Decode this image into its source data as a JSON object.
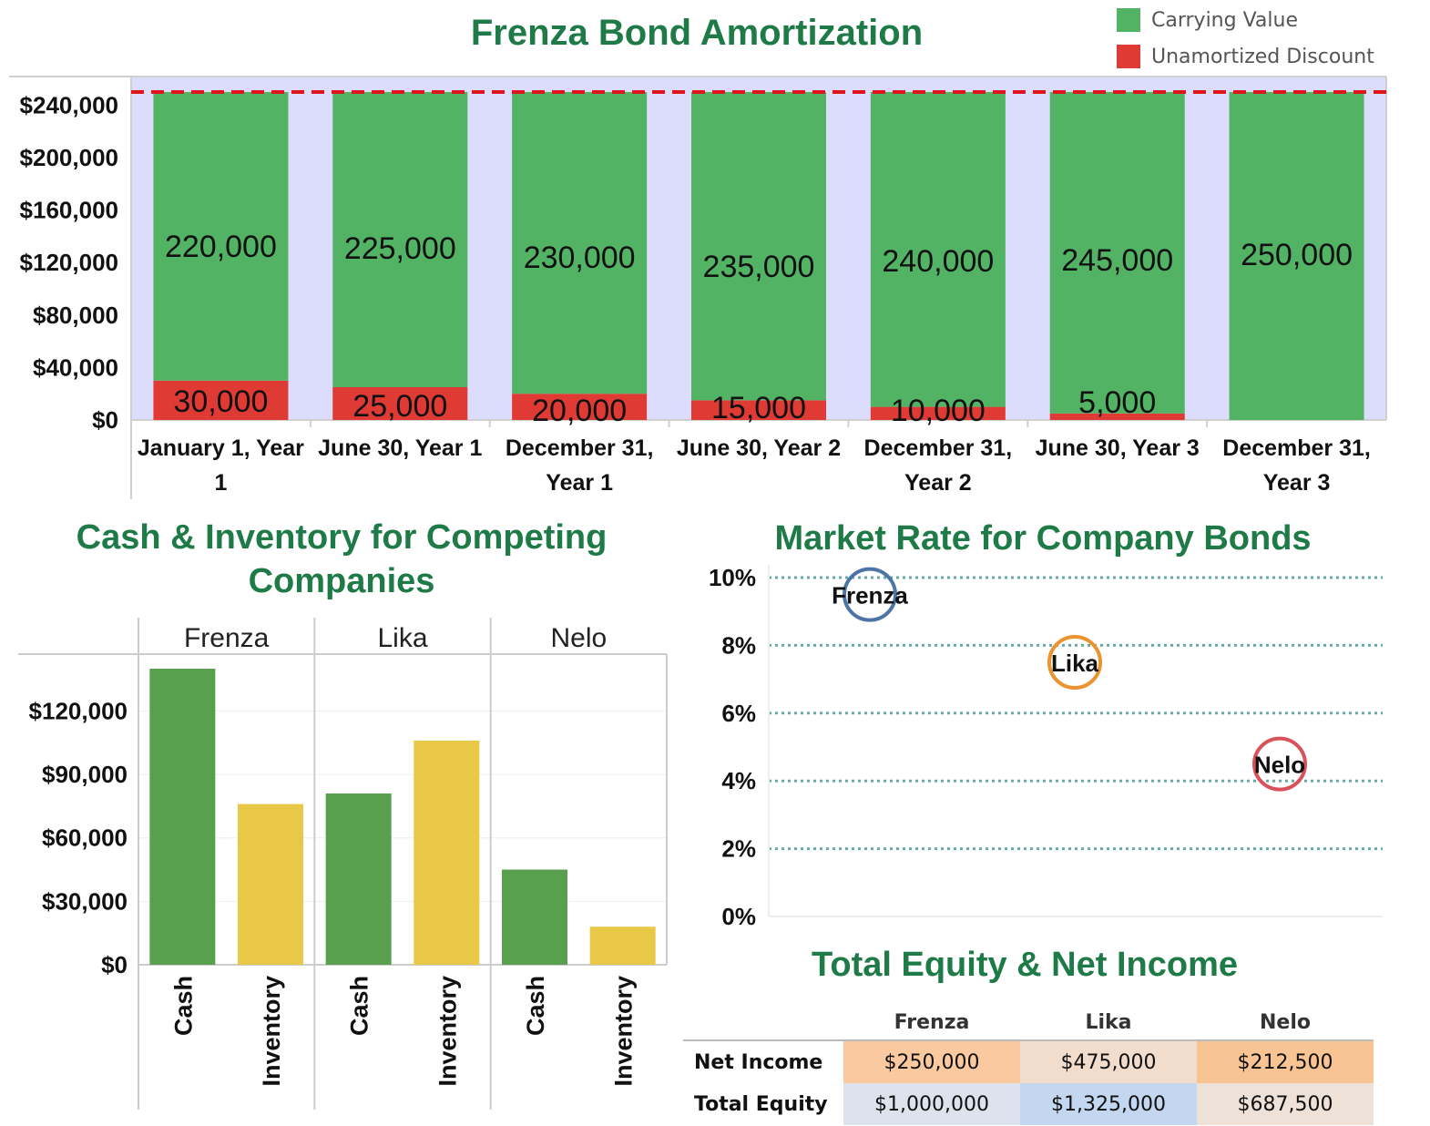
{
  "colors": {
    "title": "#1e7a46",
    "carrying": "#53b365",
    "discount": "#e03a34",
    "plot_bg": "#dcdcfc",
    "cash": "#58a04e",
    "inventory": "#e9c847",
    "frenza_circle": "#4e73a6",
    "lika_circle": "#ec922e",
    "nelo_circle": "#d9525a",
    "grid_dotted": "#69aaa4"
  },
  "chart_data": [
    {
      "type": "bar",
      "stacked": true,
      "title": "Frenza Bond Amortization",
      "categories": [
        "January 1, Year 1",
        "June 30, Year 1",
        "December 31, Year 1",
        "June 30, Year 2",
        "December 31, Year 2",
        "June 30, Year 3",
        "December 31, Year 3"
      ],
      "series": [
        {
          "name": "Unamortized Discount",
          "values": [
            30000,
            25000,
            20000,
            15000,
            10000,
            5000,
            0
          ],
          "labels": [
            "30,000",
            "25,000",
            "20,000",
            "15,000",
            "10,000",
            "5,000",
            ""
          ]
        },
        {
          "name": "Carrying Value",
          "values": [
            220000,
            225000,
            230000,
            235000,
            240000,
            245000,
            250000
          ],
          "labels": [
            "220,000",
            "225,000",
            "230,000",
            "235,000",
            "240,000",
            "245,000",
            "250,000"
          ]
        }
      ],
      "yticks": [
        "$0",
        "$40,000",
        "$80,000",
        "$120,000",
        "$160,000",
        "$200,000",
        "$240,000"
      ],
      "ylim": [
        0,
        250000
      ],
      "reference_line": 250000,
      "legend": "top-right"
    },
    {
      "type": "bar",
      "title": "Cash & Inventory for Competing Companies",
      "groups": [
        "Frenza",
        "Lika",
        "Nelo"
      ],
      "categories": [
        "Cash",
        "Inventory"
      ],
      "series": [
        {
          "group": "Frenza",
          "values": [
            140000,
            76000
          ]
        },
        {
          "group": "Lika",
          "values": [
            81000,
            106000
          ]
        },
        {
          "group": "Nelo",
          "values": [
            45000,
            18000
          ]
        }
      ],
      "yticks": [
        "$0",
        "$30,000",
        "$60,000",
        "$90,000",
        "$120,000"
      ],
      "ylim": [
        0,
        140000
      ]
    },
    {
      "type": "scatter",
      "title": "Market Rate for Company Bonds",
      "points": [
        {
          "label": "Frenza",
          "x": 1,
          "y": 9.5
        },
        {
          "label": "Lika",
          "x": 2,
          "y": 7.5
        },
        {
          "label": "Nelo",
          "x": 3,
          "y": 4.5
        }
      ],
      "yticks": [
        "0%",
        "2%",
        "4%",
        "6%",
        "8%",
        "10%"
      ],
      "ylim": [
        0,
        10
      ]
    }
  ],
  "equity_table": {
    "title": "Total Equity & Net Income",
    "columns": [
      "Frenza",
      "Lika",
      "Nelo"
    ],
    "rows": [
      {
        "label": "Net Income",
        "values": [
          "$250,000",
          "$475,000",
          "$212,500"
        ],
        "colors": [
          "#fbc9a0",
          "#f2dccb",
          "#f9c493"
        ]
      },
      {
        "label": "Total Equity",
        "values": [
          "$1,000,000",
          "$1,325,000",
          "$687,500"
        ],
        "colors": [
          "#dde3ec",
          "#c3d7f1",
          "#ede1d8"
        ]
      }
    ]
  }
}
